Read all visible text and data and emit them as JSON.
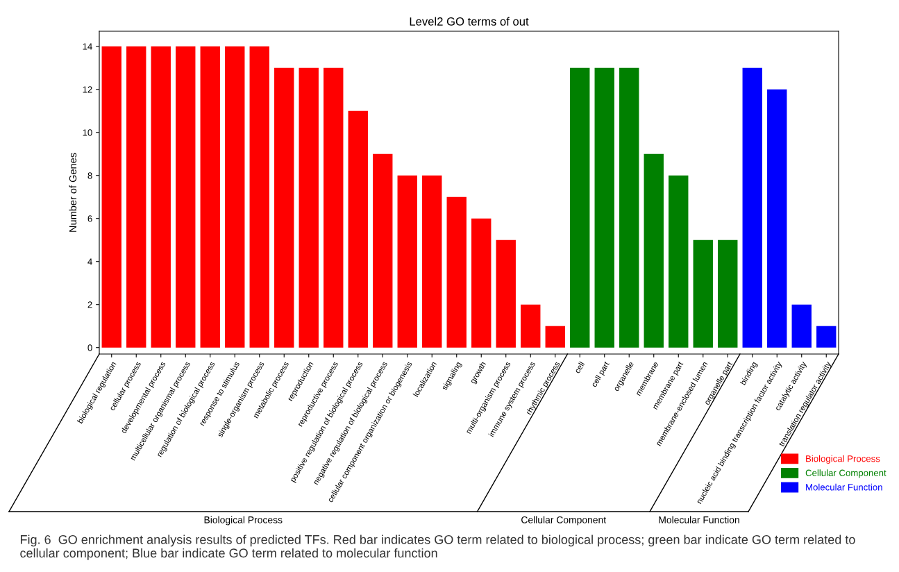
{
  "chart_data": {
    "type": "bar",
    "title": "Level2 GO terms of out",
    "ylabel": "Number of Genes",
    "categories": [
      "biological regulation",
      "cellular process",
      "developmental process",
      "multicellular organismal process",
      "regulation of biological process",
      "response to stimulus",
      "single-organism process",
      "metabolic process",
      "reproduction",
      "reproductive process",
      "positive regulation of biological process",
      "negative regulation of biological process",
      "cellular component organization or biogenesis",
      "localization",
      "signaling",
      "growth",
      "multi-organism process",
      "immune system process",
      "rhythmic process",
      "cell",
      "cell part",
      "organelle",
      "membrane",
      "membrane part",
      "membrane-enclosed lumen",
      "organelle part",
      "binding",
      "nucleic acid binding transcription factor activity",
      "catalytic activity",
      "translation regulator activity"
    ],
    "series": [
      {
        "name": "Biological Process",
        "color": "#ff0000",
        "values": [
          14,
          14,
          14,
          14,
          14,
          14,
          14,
          13,
          13,
          13,
          11,
          9,
          8,
          8,
          7,
          6,
          5,
          2,
          1,
          null,
          null,
          null,
          null,
          null,
          null,
          null,
          null,
          null,
          null,
          null
        ]
      },
      {
        "name": "Cellular Component",
        "color": "#008000",
        "values": [
          null,
          null,
          null,
          null,
          null,
          null,
          null,
          null,
          null,
          null,
          null,
          null,
          null,
          null,
          null,
          null,
          null,
          null,
          null,
          13,
          13,
          13,
          9,
          8,
          5,
          5,
          null,
          null,
          null,
          null
        ]
      },
      {
        "name": "Molecular Function",
        "color": "#0000ff",
        "values": [
          null,
          null,
          null,
          null,
          null,
          null,
          null,
          null,
          null,
          null,
          null,
          null,
          null,
          null,
          null,
          null,
          null,
          null,
          null,
          null,
          null,
          null,
          null,
          null,
          null,
          null,
          13,
          12,
          2,
          1
        ]
      }
    ],
    "ylim": [
      -0.3,
      14.7
    ],
    "yticks": [
      0,
      2,
      4,
      6,
      8,
      10,
      12,
      14
    ],
    "grid": false,
    "legend": "bottom right",
    "annotations": [
      "Biological Process",
      "Cellular Component",
      "Molecular Function",
      "Fig. 6  GO enrichment analysis results of predicted TFs. Red bar indicates GO term related to biological process; green bar indicate GO term related to cellular component; Blue bar indicate GO term related to molecular function"
    ]
  }
}
